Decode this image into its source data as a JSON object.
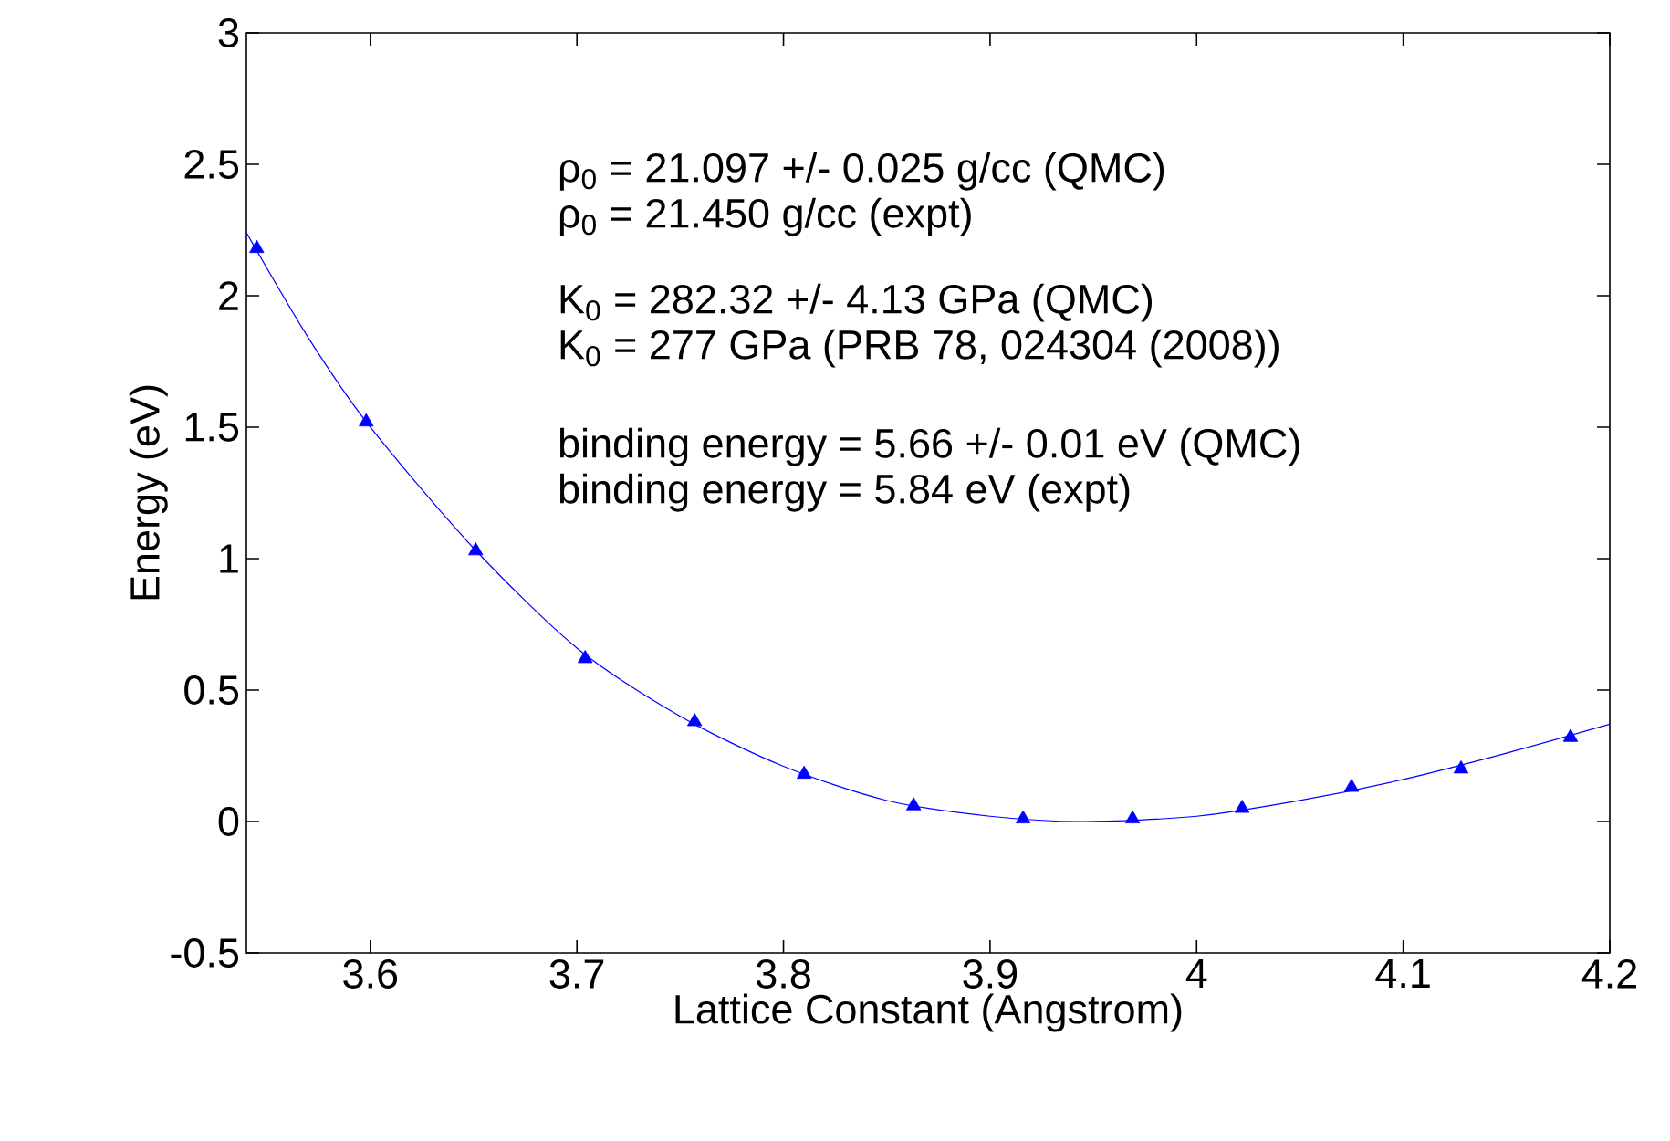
{
  "chart_data": {
    "type": "scatter",
    "xlabel": "Lattice Constant (Angstrom)",
    "ylabel": "Energy (eV)",
    "xlim": [
      3.54,
      4.2
    ],
    "xticks": [
      3.6,
      3.7,
      3.8,
      3.9,
      4,
      4.1,
      4.2
    ],
    "ylim": [
      -0.5,
      3
    ],
    "yticks": [
      -0.5,
      0,
      0.5,
      1,
      1.5,
      2,
      2.5,
      3
    ],
    "grid": false,
    "series": [
      {
        "type": "scatter",
        "marker": "triangle",
        "color": "#0000ff",
        "x": [
          3.545,
          3.598,
          3.651,
          3.704,
          3.757,
          3.81,
          3.863,
          3.916,
          3.969,
          4.022,
          4.075,
          4.128,
          4.181
        ],
        "values": [
          2.18,
          1.52,
          1.03,
          0.62,
          0.38,
          0.18,
          0.06,
          0.01,
          0.01,
          0.05,
          0.13,
          0.2,
          0.32
        ]
      },
      {
        "type": "line",
        "marker": "none",
        "line_style": "solid",
        "color": "#0000ff",
        "x": [
          3.54,
          3.57,
          3.6,
          3.65,
          3.7,
          3.75,
          3.8,
          3.85,
          3.9,
          3.945,
          4.0,
          4.05,
          4.1,
          4.15,
          4.2
        ],
        "values": [
          2.24,
          1.84,
          1.5,
          1.04,
          0.66,
          0.4,
          0.21,
          0.08,
          0.02,
          0.0,
          0.02,
          0.08,
          0.16,
          0.26,
          0.37
        ]
      }
    ],
    "annotations": [
      "ρ$_{0}$ = 21.097 +/-  0.025 g/cc (QMC)",
      "ρ$_{0}$ = 21.450 g/cc (expt)",
      "K$_{0}$ = 282.32 +/-   4.13 GPa (QMC)",
      "K$_{0}$ = 277 GPa (PRB 78, 024304 (2008))",
      "binding energy =  5.66 +/-  0.01 eV (QMC)",
      "binding energy = 5.84 eV (expt)"
    ]
  }
}
